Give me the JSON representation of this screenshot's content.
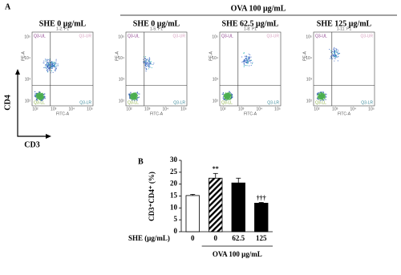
{
  "panel_a": {
    "label": "A",
    "group_label": "OVA 100 μg/mL",
    "y_marker": "CD4",
    "x_marker": "CD3",
    "x_axis_label": "FITC-A",
    "y_axis_label": "PE-A",
    "tick_labels": [
      "10²",
      "10³",
      "10⁴",
      "10⁵"
    ],
    "quadrant_labels": [
      "Q3-UL",
      "Q3-UR",
      "Q3-LL",
      "Q3-LR"
    ],
    "plots": [
      {
        "title": "SHE 0 μg/mL",
        "sample": "1-2: P1"
      },
      {
        "title": "SHE 0 μg/mL",
        "sample": "1-5: P1"
      },
      {
        "title": "SHE 62.5 μg/mL",
        "sample": "1-8: P1"
      },
      {
        "title": "SHE 125 μg/mL",
        "sample": "1-11: P1"
      }
    ]
  },
  "chart_data": {
    "type": "bar",
    "panel_label": "B",
    "y_label": "CD3⁺CD4⁺ (%)",
    "x_label": "SHE (μg/mL)",
    "group_label": "OVA 100 μg/mL",
    "categories": [
      "0",
      "0",
      "62.5",
      "125"
    ],
    "values": [
      15.2,
      22.5,
      20.5,
      12.0
    ],
    "errors": [
      0.5,
      2.0,
      2.0,
      0.3
    ],
    "bar_styles": [
      "open",
      "hatched",
      "solid",
      "solid"
    ],
    "annotations": [
      null,
      "**",
      null,
      "†††"
    ],
    "color": "#000000",
    "ylim": [
      0,
      30
    ],
    "yticks": [
      0,
      5,
      10,
      15,
      20,
      25,
      30
    ]
  }
}
